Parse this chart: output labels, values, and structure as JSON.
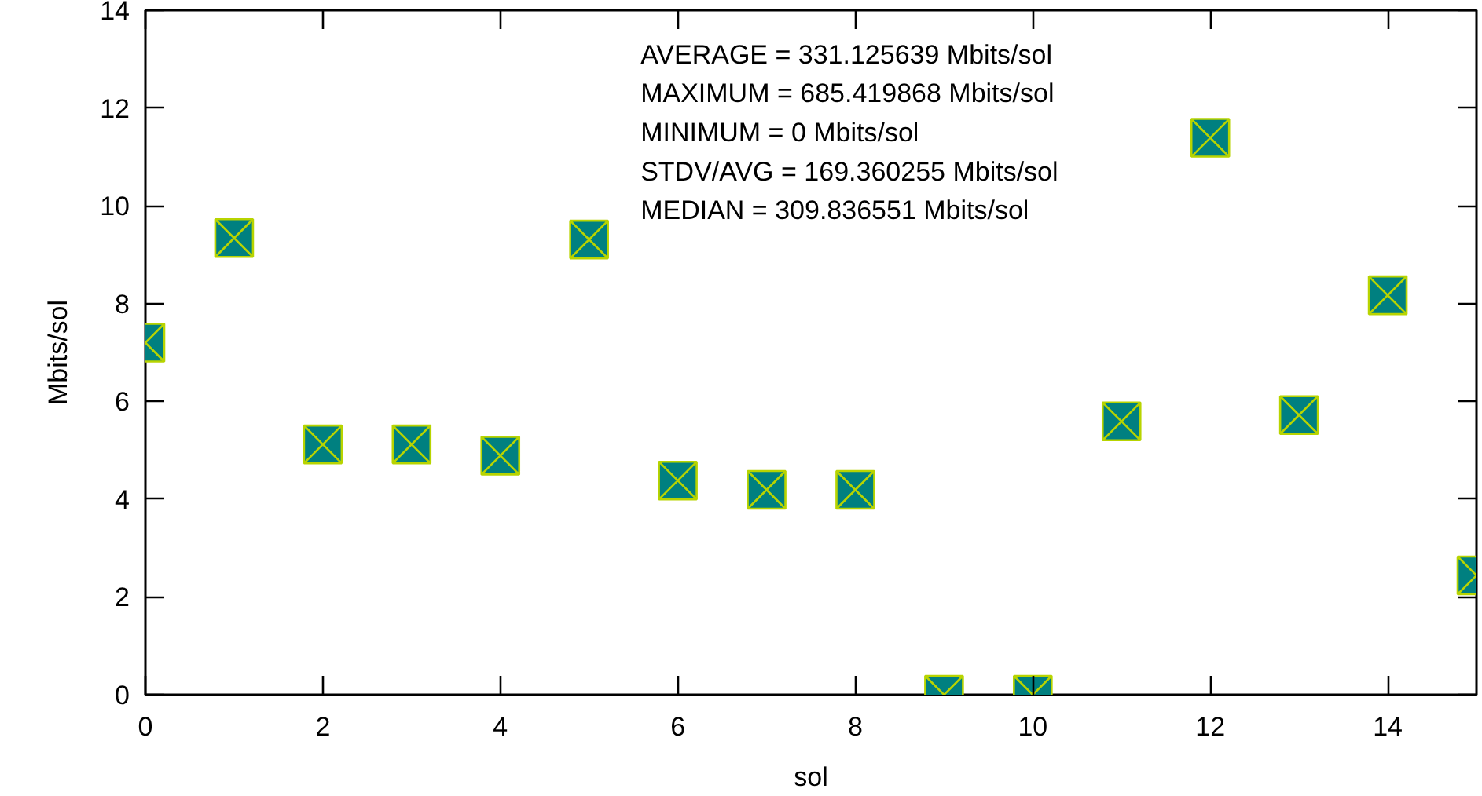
{
  "chart_data": {
    "type": "scatter",
    "xlabel": "sol",
    "ylabel": "Mbits/sol",
    "x": [
      0,
      1,
      2,
      3,
      4,
      5,
      6,
      7,
      8,
      9,
      10,
      11,
      12,
      13,
      14,
      15
    ],
    "values": [
      7.2,
      9.34,
      5.12,
      5.12,
      4.89,
      9.31,
      4.38,
      4.19,
      4.19,
      0,
      0,
      5.59,
      11.39,
      5.72,
      8.17,
      2.44
    ],
    "color": "#008080",
    "marker": "square",
    "xlim": [
      0,
      15
    ],
    "ylim": [
      0,
      14
    ],
    "xticks": [
      0,
      2,
      4,
      6,
      8,
      10,
      12,
      14
    ],
    "yticks": [
      0,
      2,
      4,
      6,
      8,
      10,
      12,
      14
    ],
    "grid": false,
    "annotations": [
      "AVERAGE  = 331.125639 Mbits/sol",
      "MAXIMUM  = 685.419868 Mbits/sol",
      "MINIMUM   = 0 Mbits/sol",
      "STDV/AVG = 169.360255 Mbits/sol",
      "MEDIAN     = 309.836551 Mbits/sol"
    ]
  }
}
